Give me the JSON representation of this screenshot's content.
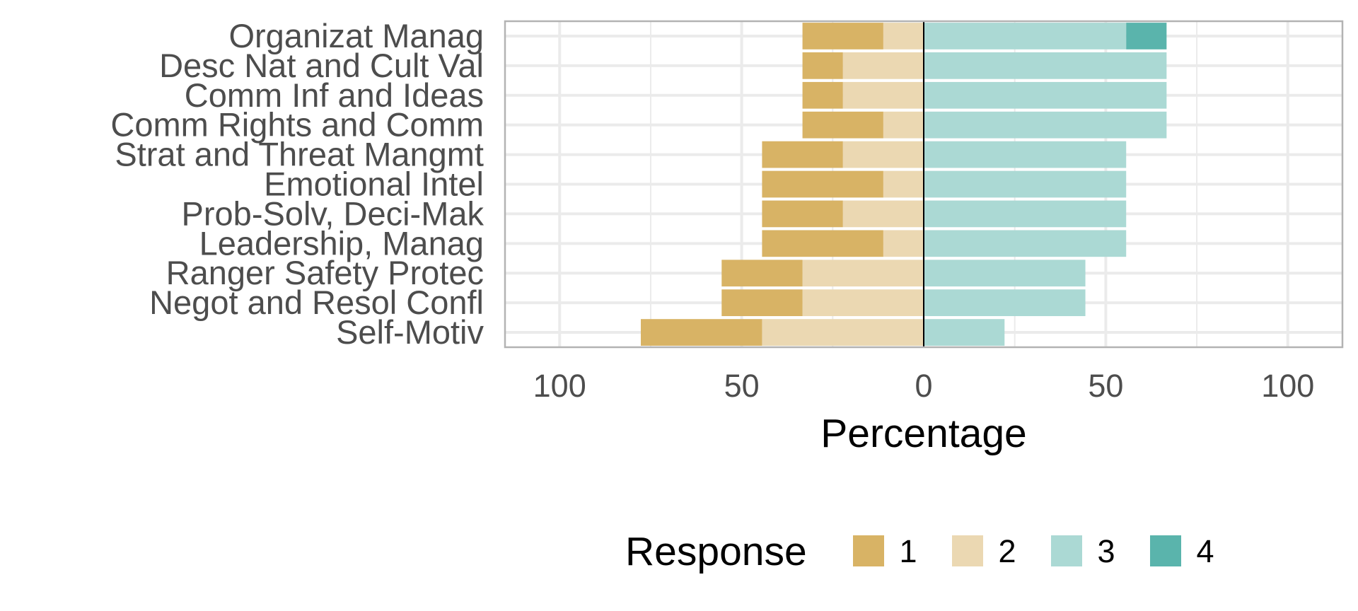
{
  "chart_data": {
    "type": "bar",
    "orientation": "horizontal",
    "stacked": "diverging",
    "xlabel": "Percentage",
    "ylabel": "",
    "xlim": [
      -115,
      115
    ],
    "x_ticks": [
      -100,
      -50,
      0,
      50,
      100
    ],
    "x_tick_labels": [
      "100",
      "50",
      "0",
      "50",
      "100"
    ],
    "grid": true,
    "legend": {
      "title": "Response",
      "position": "bottom"
    },
    "categories": [
      "Organizat Manag",
      "Desc Nat and Cult Val",
      "Comm Inf and Ideas",
      "Comm Rights and Comm",
      "Strat and Threat Mangmt",
      "Emotional Intel",
      "Prob-Solv, Deci-Mak",
      "Leadership, Manag",
      "Ranger Safety Protec",
      "Negot and Resol Confl",
      "Self-Motiv"
    ],
    "series": [
      {
        "name": "1",
        "color": "#D8B365",
        "side": "negative",
        "values": [
          22.2,
          11.1,
          11.1,
          22.2,
          22.2,
          33.3,
          22.2,
          33.3,
          22.2,
          22.2,
          33.3
        ]
      },
      {
        "name": "2",
        "color": "#EBD8B2",
        "side": "negative",
        "values": [
          11.1,
          22.2,
          22.2,
          11.1,
          22.2,
          11.1,
          22.2,
          11.1,
          33.3,
          33.3,
          44.4
        ]
      },
      {
        "name": "3",
        "color": "#ABD9D4",
        "side": "positive",
        "values": [
          55.6,
          66.7,
          66.7,
          66.7,
          55.6,
          55.6,
          55.6,
          55.6,
          44.4,
          44.4,
          22.2
        ]
      },
      {
        "name": "4",
        "color": "#5AB4AC",
        "side": "positive",
        "values": [
          11.1,
          0,
          0,
          0,
          0,
          0,
          0,
          0,
          0,
          0,
          0
        ]
      }
    ]
  }
}
